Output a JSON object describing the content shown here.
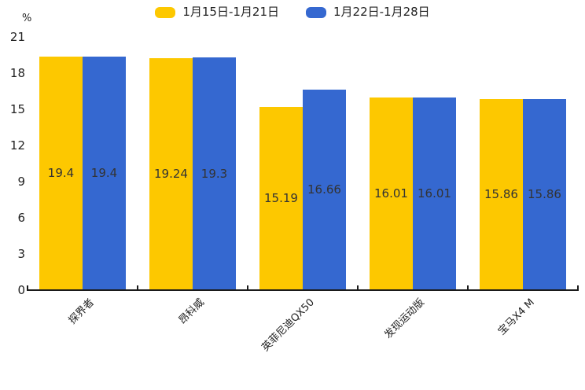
{
  "chart_data": {
    "type": "bar",
    "title": "",
    "categories": [
      "探界者",
      "昂科威",
      "英菲尼迪QX50",
      "发现运动版",
      "宝马X4 M"
    ],
    "series": [
      {
        "name": "1月15日-1月21日",
        "color": "#FDC800",
        "values": [
          19.4,
          19.24,
          15.19,
          16.01,
          15.86
        ]
      },
      {
        "name": "1月22日-1月28日",
        "color": "#3568D0",
        "values": [
          19.4,
          19.3,
          16.66,
          16.01,
          15.86
        ]
      }
    ],
    "xlabel": "",
    "ylabel": "%",
    "ylim": [
      0,
      21
    ],
    "yticks": [
      0,
      3,
      6,
      9,
      12,
      15,
      18,
      21
    ],
    "grid": false,
    "legend_position": "top-center",
    "value_labels": "centered-inside-bars",
    "category_label_rotation_deg": 45,
    "axis_color": "#1a1a1a",
    "label_text_color": "#333333"
  }
}
